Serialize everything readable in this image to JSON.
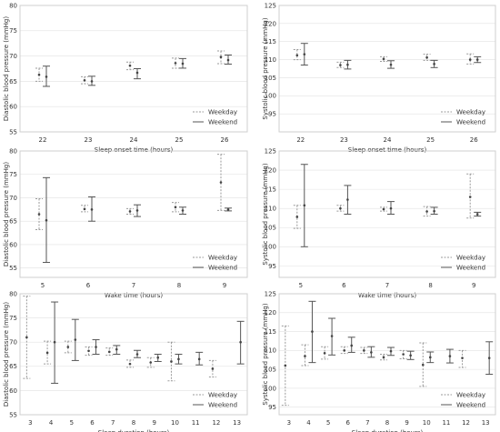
{
  "figure": {
    "panels": [
      {
        "id": "A",
        "chart_data": {
          "type": "errorbar",
          "xlabel": "Sleep onset time (hours)",
          "ylabel": "Diastolic blood pressure (mmHg)",
          "categories": [
            "22",
            "23",
            "24",
            "25",
            "26"
          ],
          "ylim": [
            55,
            80
          ],
          "yticks": [
            55,
            60,
            65,
            70,
            75,
            80
          ],
          "legend": {
            "position": "bottom-right",
            "weekday": "Weekday",
            "weekend": "Weekend"
          },
          "series": [
            {
              "name": "Weekday",
              "style": "dashed",
              "mean": [
                66.3,
                65.2,
                68.1,
                68.6,
                69.8
              ],
              "low": [
                65.0,
                64.5,
                67.3,
                67.6,
                68.5
              ],
              "high": [
                67.6,
                65.9,
                68.8,
                69.6,
                71.0
              ]
            },
            {
              "name": "Weekend",
              "style": "solid",
              "mean": [
                65.9,
                65.0,
                66.7,
                68.5,
                69.2
              ],
              "low": [
                64.0,
                64.2,
                65.5,
                67.6,
                68.4
              ],
              "high": [
                68.0,
                66.0,
                67.5,
                69.5,
                70.2
              ]
            }
          ]
        }
      },
      {
        "id": "B",
        "chart_data": {
          "type": "errorbar",
          "xlabel": "Sleep onset time (hours)",
          "ylabel": "Systolic blood pressure (mmHg)",
          "categories": [
            "22",
            "23",
            "24",
            "25",
            "26"
          ],
          "ylim": [
            90,
            125
          ],
          "yticks": [
            95,
            100,
            105,
            110,
            115,
            120,
            125
          ],
          "legend": {
            "position": "bottom-right",
            "weekday": "Weekday",
            "weekend": "Weekend"
          },
          "series": [
            {
              "name": "Weekday",
              "style": "dashed",
              "mean": [
                111.2,
                108.5,
                110.2,
                110.6,
                110.0
              ],
              "low": [
                110.0,
                107.8,
                109.5,
                109.8,
                108.8
              ],
              "high": [
                112.8,
                109.3,
                110.8,
                111.5,
                111.6
              ]
            },
            {
              "name": "Weekend",
              "style": "solid",
              "mean": [
                111.5,
                108.6,
                108.6,
                108.8,
                110.0
              ],
              "low": [
                108.5,
                107.4,
                107.6,
                107.8,
                109.2
              ],
              "high": [
                114.5,
                109.8,
                109.7,
                109.8,
                110.8
              ]
            }
          ]
        }
      },
      {
        "id": "C",
        "chart_data": {
          "type": "errorbar",
          "xlabel": "Wake time (hours)",
          "ylabel": "Diastolic blood pressure (mmHg)",
          "categories": [
            "5",
            "6",
            "7",
            "8",
            "9"
          ],
          "ylim": [
            53,
            80
          ],
          "yticks": [
            55,
            60,
            65,
            70,
            75,
            80
          ],
          "legend": {
            "position": "bottom-right",
            "weekday": "Weekday",
            "weekend": "Weekend"
          },
          "series": [
            {
              "name": "Weekday",
              "style": "dashed",
              "mean": [
                66.5,
                67.6,
                67.1,
                68.0,
                73.3
              ],
              "low": [
                63.2,
                67.0,
                66.5,
                67.0,
                67.3
              ],
              "high": [
                69.8,
                68.4,
                67.7,
                69.0,
                79.3
              ]
            },
            {
              "name": "Weekend",
              "style": "solid",
              "mean": [
                65.2,
                67.5,
                67.3,
                67.3,
                67.5
              ],
              "low": [
                56.2,
                65.0,
                66.0,
                66.5,
                67.2
              ],
              "high": [
                74.3,
                70.2,
                68.5,
                68.0,
                67.8
              ]
            }
          ]
        }
      },
      {
        "id": "D",
        "chart_data": {
          "type": "errorbar",
          "xlabel": "Wake time (hours)",
          "ylabel": "Systolic blood pressure (mmHg)",
          "categories": [
            "5",
            "6",
            "7",
            "8",
            "9"
          ],
          "ylim": [
            92,
            125
          ],
          "yticks": [
            95,
            100,
            105,
            110,
            115,
            120,
            125
          ],
          "legend": {
            "position": "bottom-right",
            "weekday": "Weekday",
            "weekend": "Weekend"
          },
          "series": [
            {
              "name": "Weekday",
              "style": "dashed",
              "mean": [
                107.8,
                110.0,
                109.8,
                109.2,
                113.0
              ],
              "low": [
                104.8,
                109.3,
                109.3,
                108.0,
                107.5
              ],
              "high": [
                110.8,
                110.8,
                110.3,
                110.5,
                119.0
              ]
            },
            {
              "name": "Weekend",
              "style": "solid",
              "mean": [
                110.8,
                112.3,
                110.0,
                109.3,
                108.5
              ],
              "low": [
                100.0,
                108.5,
                108.5,
                108.5,
                108.0
              ],
              "high": [
                121.5,
                116.0,
                111.8,
                110.3,
                109.0
              ]
            }
          ]
        }
      },
      {
        "id": "E",
        "chart_data": {
          "type": "errorbar",
          "xlabel": "Sleep duration (hours)",
          "ylabel": "Diastolic blood pressure (mmHg)",
          "categories": [
            "3",
            "4",
            "5",
            "6",
            "7",
            "8",
            "9",
            "10",
            "11",
            "12",
            "13"
          ],
          "ylim": [
            55,
            80
          ],
          "yticks": [
            55,
            60,
            65,
            70,
            75,
            80
          ],
          "legend": {
            "position": "bottom-right",
            "weekday": "Weekday",
            "weekend": "Weekend"
          },
          "series": [
            {
              "name": "Weekday",
              "style": "dashed",
              "mean": [
                71.0,
                67.8,
                69.0,
                68.2,
                68.0,
                65.5,
                65.8,
                66.0,
                null,
                64.5,
                null
              ],
              "low": [
                62.5,
                65.5,
                67.8,
                67.3,
                67.3,
                64.8,
                64.8,
                62.0,
                null,
                62.8,
                null
              ],
              "high": [
                79.5,
                70.2,
                70.2,
                69.0,
                68.8,
                66.3,
                66.8,
                70.0,
                null,
                66.2,
                null
              ],
              "x_index": [
                0,
                1,
                2,
                3,
                4,
                5,
                6,
                7,
                8,
                9,
                10
              ]
            },
            {
              "name": "Weekend",
              "style": "solid",
              "mean": [
                null,
                70.0,
                70.5,
                69.0,
                68.5,
                67.5,
                66.8,
                66.5,
                66.5,
                null,
                70.0
              ],
              "low": [
                null,
                61.5,
                66.2,
                67.5,
                67.5,
                66.8,
                66.0,
                65.5,
                65.3,
                null,
                65.5
              ],
              "high": [
                null,
                78.3,
                74.7,
                70.5,
                69.3,
                68.3,
                67.5,
                67.5,
                67.9,
                null,
                74.3
              ],
              "x_index": [
                0,
                1,
                2,
                3,
                4,
                5,
                6,
                7,
                8,
                9,
                10
              ]
            }
          ]
        }
      },
      {
        "id": "F",
        "chart_data": {
          "type": "errorbar",
          "xlabel": "Sleep duration (hours)",
          "ylabel": "Systolic blood pressure (mmHg)",
          "categories": [
            "3",
            "4",
            "5",
            "6",
            "7",
            "8",
            "9",
            "10",
            "11",
            "12",
            "13"
          ],
          "ylim": [
            93,
            125
          ],
          "yticks": [
            95,
            100,
            105,
            110,
            115,
            120,
            125
          ],
          "legend": {
            "position": "bottom-right",
            "weekday": "Weekday",
            "weekend": "Weekend"
          },
          "series": [
            {
              "name": "Weekday",
              "style": "dashed",
              "mean": [
                106.0,
                108.5,
                109.3,
                110.0,
                110.0,
                108.2,
                109.0,
                106.2,
                null,
                108.0,
                null
              ],
              "low": [
                95.5,
                106.0,
                107.7,
                109.2,
                109.2,
                107.5,
                107.8,
                100.5,
                null,
                105.5,
                null
              ],
              "high": [
                116.5,
                111.5,
                111.0,
                111.0,
                110.8,
                109.0,
                110.0,
                112.0,
                null,
                110.0,
                null
              ],
              "x_index": [
                0,
                1,
                2,
                3,
                4,
                5,
                6,
                7,
                8,
                9,
                10
              ]
            },
            {
              "name": "Weekend",
              "style": "solid",
              "mean": [
                null,
                115.0,
                113.8,
                111.3,
                109.5,
                109.8,
                108.7,
                108.2,
                108.5,
                null,
                108.0
              ],
              "low": [
                null,
                106.8,
                108.8,
                109.5,
                108.2,
                108.7,
                107.6,
                106.8,
                106.7,
                null,
                103.7
              ],
              "high": [
                null,
                123.0,
                118.5,
                113.5,
                111.0,
                110.8,
                109.8,
                109.6,
                110.3,
                null,
                112.3
              ],
              "x_index": [
                0,
                1,
                2,
                3,
                4,
                5,
                6,
                7,
                8,
                9,
                10
              ]
            }
          ]
        }
      }
    ]
  }
}
